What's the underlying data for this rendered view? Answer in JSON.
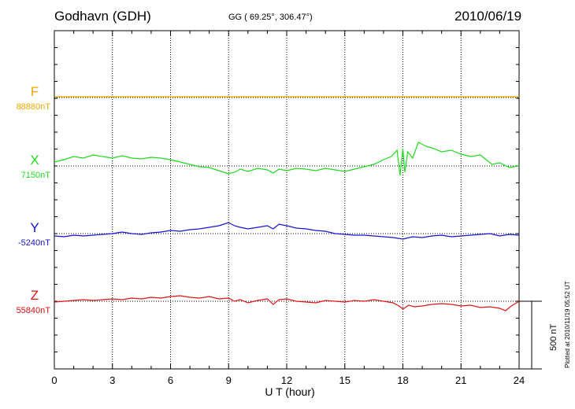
{
  "header": {
    "station": "Godhavn (GDH)",
    "coords": "GG ( 69.25°, 306.47°)",
    "date": "2010/06/19",
    "plotted": "Plotted at 2010/11/19 05:52 UT"
  },
  "chart_data": {
    "type": "line",
    "xlabel": "U T (hour)",
    "xlim": [
      0,
      24
    ],
    "xticks": [
      "0",
      "3",
      "6",
      "9",
      "12",
      "15",
      "18",
      "21",
      "24"
    ],
    "grid": "dotted vertical lines every 3 hours",
    "scale_bar": "500 nT",
    "series": [
      {
        "name": "F",
        "baseline": "88880nT",
        "color": "#f0a800",
        "x": [
          0,
          6,
          12,
          18,
          24
        ],
        "y": [
          0,
          0,
          0,
          0,
          0
        ]
      },
      {
        "name": "X",
        "baseline": "7150nT",
        "color": "#22d822",
        "x": [
          0,
          0.5,
          1,
          1.5,
          2,
          2.5,
          3,
          3.5,
          4,
          4.5,
          5,
          5.5,
          6,
          6.5,
          7,
          7.5,
          8,
          8.5,
          9,
          9.3,
          9.6,
          10,
          10.5,
          11,
          11.3,
          11.6,
          12,
          12.5,
          13,
          13.5,
          14,
          14.5,
          15,
          15.5,
          16,
          16.5,
          17,
          17.4,
          17.7,
          17.85,
          18,
          18.1,
          18.25,
          18.5,
          18.8,
          19.2,
          19.6,
          20,
          20.5,
          21,
          21.5,
          22,
          22.3,
          22.6,
          23,
          23.5,
          24
        ],
        "y": [
          5,
          8,
          12,
          10,
          14,
          12,
          10,
          13,
          10,
          9,
          11,
          10,
          8,
          5,
          2,
          -1,
          -2,
          -6,
          -10,
          -8,
          -4,
          -7,
          -3,
          -5,
          -9,
          -4,
          -6,
          -3,
          -4,
          -6,
          -3,
          -5,
          -7,
          -4,
          -1,
          2,
          8,
          12,
          20,
          -12,
          22,
          -8,
          18,
          10,
          30,
          25,
          22,
          18,
          20,
          15,
          12,
          14,
          8,
          2,
          4,
          -2,
          0
        ]
      },
      {
        "name": "Y",
        "baseline": "-5240nT",
        "color": "#1414d2",
        "x": [
          0,
          0.5,
          1,
          1.5,
          2,
          2.5,
          3,
          3.5,
          4,
          4.5,
          5,
          5.5,
          6,
          6.5,
          7,
          7.5,
          8,
          8.5,
          9,
          9.3,
          9.6,
          10,
          10.5,
          11,
          11.3,
          11.6,
          12,
          12.5,
          13,
          13.5,
          14,
          14.5,
          15,
          15.5,
          16,
          16.5,
          17,
          17.5,
          18,
          18.5,
          19,
          19.5,
          20,
          20.5,
          21,
          21.5,
          22,
          22.5,
          23,
          23.5,
          24
        ],
        "y": [
          -3,
          -4,
          -2,
          -3,
          -2,
          -1,
          0,
          2,
          0,
          -1,
          1,
          2,
          4,
          3,
          5,
          6,
          8,
          10,
          14,
          10,
          8,
          6,
          8,
          10,
          6,
          12,
          10,
          7,
          6,
          4,
          3,
          0,
          -1,
          -2,
          -2,
          -3,
          -4,
          -5,
          -7,
          -4,
          -5,
          -3,
          -2,
          -4,
          -3,
          -2,
          -1,
          0,
          -3,
          -1,
          -2
        ]
      },
      {
        "name": "Z",
        "baseline": "55840nT",
        "color": "#dc1414",
        "x": [
          0,
          0.5,
          1,
          1.5,
          2,
          2.5,
          3,
          3.5,
          4,
          4.5,
          5,
          5.5,
          6,
          6.5,
          7,
          7.5,
          8,
          8.5,
          9,
          9.3,
          9.6,
          10,
          10.5,
          11,
          11.3,
          11.6,
          12,
          12.5,
          13,
          13.5,
          14,
          14.5,
          15,
          15.5,
          16,
          16.5,
          17,
          17.5,
          17.8,
          18,
          18.3,
          18.6,
          19,
          19.5,
          20,
          20.5,
          21,
          21.5,
          22,
          22.5,
          23,
          23.3,
          23.6,
          24
        ],
        "y": [
          -1,
          0,
          1,
          2,
          1,
          2,
          3,
          2,
          4,
          3,
          5,
          4,
          6,
          7,
          5,
          4,
          6,
          3,
          4,
          0,
          2,
          -2,
          1,
          3,
          -4,
          2,
          3,
          0,
          -1,
          -2,
          1,
          0,
          -1,
          1,
          0,
          2,
          0,
          -2,
          -6,
          -10,
          -5,
          -7,
          -6,
          -4,
          -3,
          -4,
          -6,
          -5,
          -8,
          -7,
          -9,
          -12,
          -6,
          0
        ]
      }
    ]
  }
}
